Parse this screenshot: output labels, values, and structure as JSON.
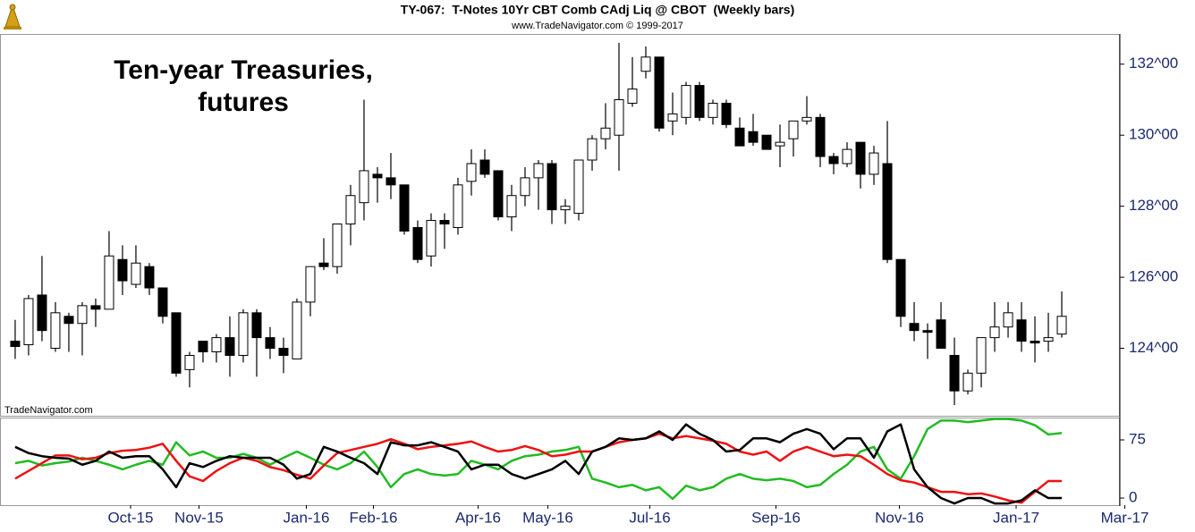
{
  "chart_data": [
    {
      "type": "candlestick",
      "title": "TY-067:  T-Notes 10Yr CBT Comb CAdj Liq @ CBOT  (Weekly bars)",
      "subtitle": "www.TradeNavigator.com © 1999-2017",
      "annotation": [
        "Ten-year Treasuries,",
        "futures"
      ],
      "source": "TradeNavigator.com",
      "up_color": "#ffffff",
      "down_color": "#000000",
      "open": [
        124.2,
        124.1,
        125.5,
        124.0,
        124.9,
        124.7,
        125.2,
        125.1,
        126.5,
        125.8,
        126.3,
        125.7,
        125.0,
        123.4,
        124.2,
        123.9,
        124.3,
        123.8,
        125.0,
        124.3,
        124.0,
        123.7,
        125.3,
        126.4,
        126.3,
        127.5,
        128.1,
        128.9,
        128.8,
        128.6,
        127.4,
        126.6,
        127.6,
        127.4,
        128.7,
        129.3,
        129.0,
        127.7,
        128.3,
        128.8,
        129.2,
        127.9,
        127.8,
        129.3,
        129.9,
        130.0,
        130.9,
        131.8,
        132.2,
        130.4,
        130.5,
        131.4,
        130.5,
        130.9,
        130.2,
        130.1,
        130.0,
        129.7,
        129.9,
        130.4,
        130.5,
        129.4,
        129.2,
        129.8,
        128.9,
        129.2,
        126.5,
        124.7,
        124.5,
        124.8,
        123.8,
        122.8,
        123.3,
        124.3,
        124.6,
        124.8,
        124.2,
        124.2,
        124.4
      ],
      "high": [
        124.8,
        125.5,
        126.6,
        125.3,
        125.0,
        125.3,
        125.4,
        127.3,
        126.9,
        126.9,
        126.4,
        125.7,
        125.0,
        123.9,
        124.2,
        124.4,
        124.9,
        125.1,
        125.1,
        124.6,
        124.3,
        125.4,
        126.3,
        127.1,
        127.5,
        128.6,
        131.0,
        129.1,
        129.5,
        128.6,
        127.6,
        127.8,
        127.8,
        128.8,
        129.6,
        129.6,
        129.0,
        128.6,
        129.1,
        129.3,
        129.3,
        128.2,
        129.3,
        130.0,
        130.9,
        132.6,
        132.2,
        132.5,
        132.2,
        131.2,
        131.5,
        131.5,
        131.0,
        131.0,
        130.5,
        130.6,
        130.0,
        130.3,
        130.4,
        131.1,
        130.6,
        129.5,
        129.8,
        129.8,
        129.7,
        130.4,
        126.5,
        125.3,
        124.7,
        125.3,
        124.3,
        123.4,
        124.3,
        125.3,
        125.3,
        125.3,
        124.9,
        125.0,
        125.6
      ],
      "low": [
        123.7,
        123.8,
        124.2,
        123.9,
        123.9,
        123.8,
        124.6,
        125.1,
        125.5,
        125.7,
        125.5,
        124.7,
        123.2,
        122.9,
        123.6,
        123.6,
        123.2,
        123.6,
        123.2,
        123.7,
        123.3,
        123.7,
        124.9,
        126.2,
        126.1,
        126.9,
        127.6,
        128.1,
        128.2,
        127.2,
        126.4,
        126.3,
        126.8,
        127.2,
        128.3,
        128.8,
        127.6,
        127.3,
        128.0,
        127.9,
        127.5,
        127.5,
        127.6,
        129.0,
        129.6,
        129.0,
        130.8,
        131.6,
        130.1,
        130.0,
        130.3,
        130.4,
        130.3,
        130.2,
        129.7,
        129.7,
        129.6,
        129.1,
        129.4,
        130.3,
        129.1,
        128.9,
        129.1,
        128.5,
        128.6,
        126.4,
        124.6,
        124.2,
        123.7,
        124.0,
        122.4,
        122.7,
        122.9,
        123.9,
        124.3,
        123.9,
        123.6,
        123.9,
        124.3
      ],
      "close": [
        124.05,
        125.4,
        124.5,
        125.0,
        124.7,
        125.2,
        125.1,
        126.6,
        125.9,
        126.4,
        125.7,
        124.9,
        123.3,
        123.8,
        123.9,
        124.3,
        123.8,
        125.0,
        124.3,
        124.0,
        123.8,
        125.3,
        126.3,
        126.3,
        127.5,
        128.3,
        129.0,
        128.8,
        128.6,
        127.3,
        126.5,
        127.6,
        127.5,
        128.6,
        129.2,
        128.9,
        127.7,
        128.3,
        128.8,
        129.2,
        127.9,
        128.0,
        129.3,
        129.9,
        130.2,
        131.0,
        131.3,
        132.2,
        130.2,
        130.6,
        131.4,
        130.5,
        130.9,
        130.3,
        129.7,
        129.8,
        129.6,
        129.8,
        130.4,
        130.5,
        129.4,
        129.2,
        129.6,
        128.9,
        129.5,
        126.5,
        124.9,
        124.5,
        124.45,
        124.0,
        122.8,
        123.3,
        124.3,
        124.6,
        125.0,
        124.2,
        124.15,
        124.3,
        124.9
      ],
      "xlim": [
        -1.13,
        82.33
      ],
      "ylim": [
        122.1,
        132.85
      ],
      "yticks": [
        {
          "value": 124,
          "label": "124^00"
        },
        {
          "value": 126,
          "label": "126^00"
        },
        {
          "value": 128,
          "label": "128^00"
        },
        {
          "value": 130,
          "label": "130^00"
        },
        {
          "value": 132,
          "label": "132^00"
        }
      ]
    },
    {
      "type": "line",
      "series": [
        {
          "color": "#22bb22",
          "values": [
            45,
            48,
            42,
            45,
            47,
            52,
            48,
            43,
            37,
            43,
            48,
            43,
            72,
            55,
            60,
            52,
            52,
            57,
            52,
            43,
            52,
            60,
            52,
            43,
            37,
            45,
            60,
            40,
            14,
            31,
            37,
            31,
            29,
            31,
            48,
            43,
            37,
            48,
            54,
            56,
            60,
            62,
            66,
            25,
            20,
            14,
            17,
            10,
            14,
            -1,
            16,
            10,
            14,
            25,
            31,
            25,
            23,
            25,
            22,
            14,
            17,
            31,
            43,
            60,
            66,
            37,
            25,
            54,
            89,
            100,
            100,
            98,
            100,
            102,
            102,
            100,
            94,
            82,
            84
          ]
        },
        {
          "color": "#ee1111",
          "values": [
            25,
            35,
            45,
            55,
            55,
            50,
            52,
            58,
            61,
            62,
            65,
            70,
            48,
            28,
            22,
            35,
            45,
            52,
            48,
            40,
            36,
            30,
            25,
            42,
            58,
            62,
            66,
            70,
            76,
            70,
            63,
            66,
            68,
            70,
            73,
            66,
            60,
            62,
            67,
            62,
            54,
            56,
            60,
            60,
            66,
            72,
            75,
            77,
            83,
            77,
            80,
            77,
            74,
            70,
            60,
            56,
            60,
            48,
            60,
            66,
            60,
            54,
            56,
            54,
            43,
            31,
            23,
            20,
            14,
            8,
            8,
            5,
            6,
            2,
            -3,
            -6,
            8,
            22,
            22
          ]
        },
        {
          "color": "#000000",
          "values": [
            66,
            58,
            54,
            52,
            51,
            43,
            48,
            60,
            52,
            54,
            54,
            37,
            14,
            45,
            40,
            48,
            54,
            52,
            52,
            52,
            43,
            25,
            31,
            66,
            60,
            52,
            45,
            31,
            72,
            68,
            68,
            72,
            66,
            60,
            37,
            43,
            43,
            31,
            25,
            31,
            37,
            48,
            31,
            60,
            66,
            77,
            75,
            77,
            86,
            75,
            95,
            83,
            75,
            60,
            62,
            77,
            77,
            72,
            83,
            89,
            83,
            63,
            77,
            77,
            52,
            86,
            95,
            37,
            14,
            0,
            -7,
            0,
            0,
            -7,
            -7,
            -3,
            10,
            0,
            0
          ]
        }
      ],
      "xlim": [
        -1.13,
        82.33
      ],
      "ylim": [
        -9.2,
        102.7
      ],
      "yticks": [
        0,
        75
      ],
      "xticks": [
        {
          "value": 8.6,
          "label": "Oct-15"
        },
        {
          "value": 13.7,
          "label": "Nov-15"
        },
        {
          "value": 21.7,
          "label": "Jan-16"
        },
        {
          "value": 26.7,
          "label": "Feb-16"
        },
        {
          "value": 34.5,
          "label": "Apr-16"
        },
        {
          "value": 39.7,
          "label": "May-16"
        },
        {
          "value": 47.3,
          "label": "Jul-16"
        },
        {
          "value": 56.7,
          "label": "Sep-16"
        },
        {
          "value": 65.9,
          "label": "Nov-16"
        },
        {
          "value": 74.6,
          "label": "Jan-17"
        },
        {
          "value": 82.7,
          "label": "Mar-17"
        }
      ]
    }
  ]
}
